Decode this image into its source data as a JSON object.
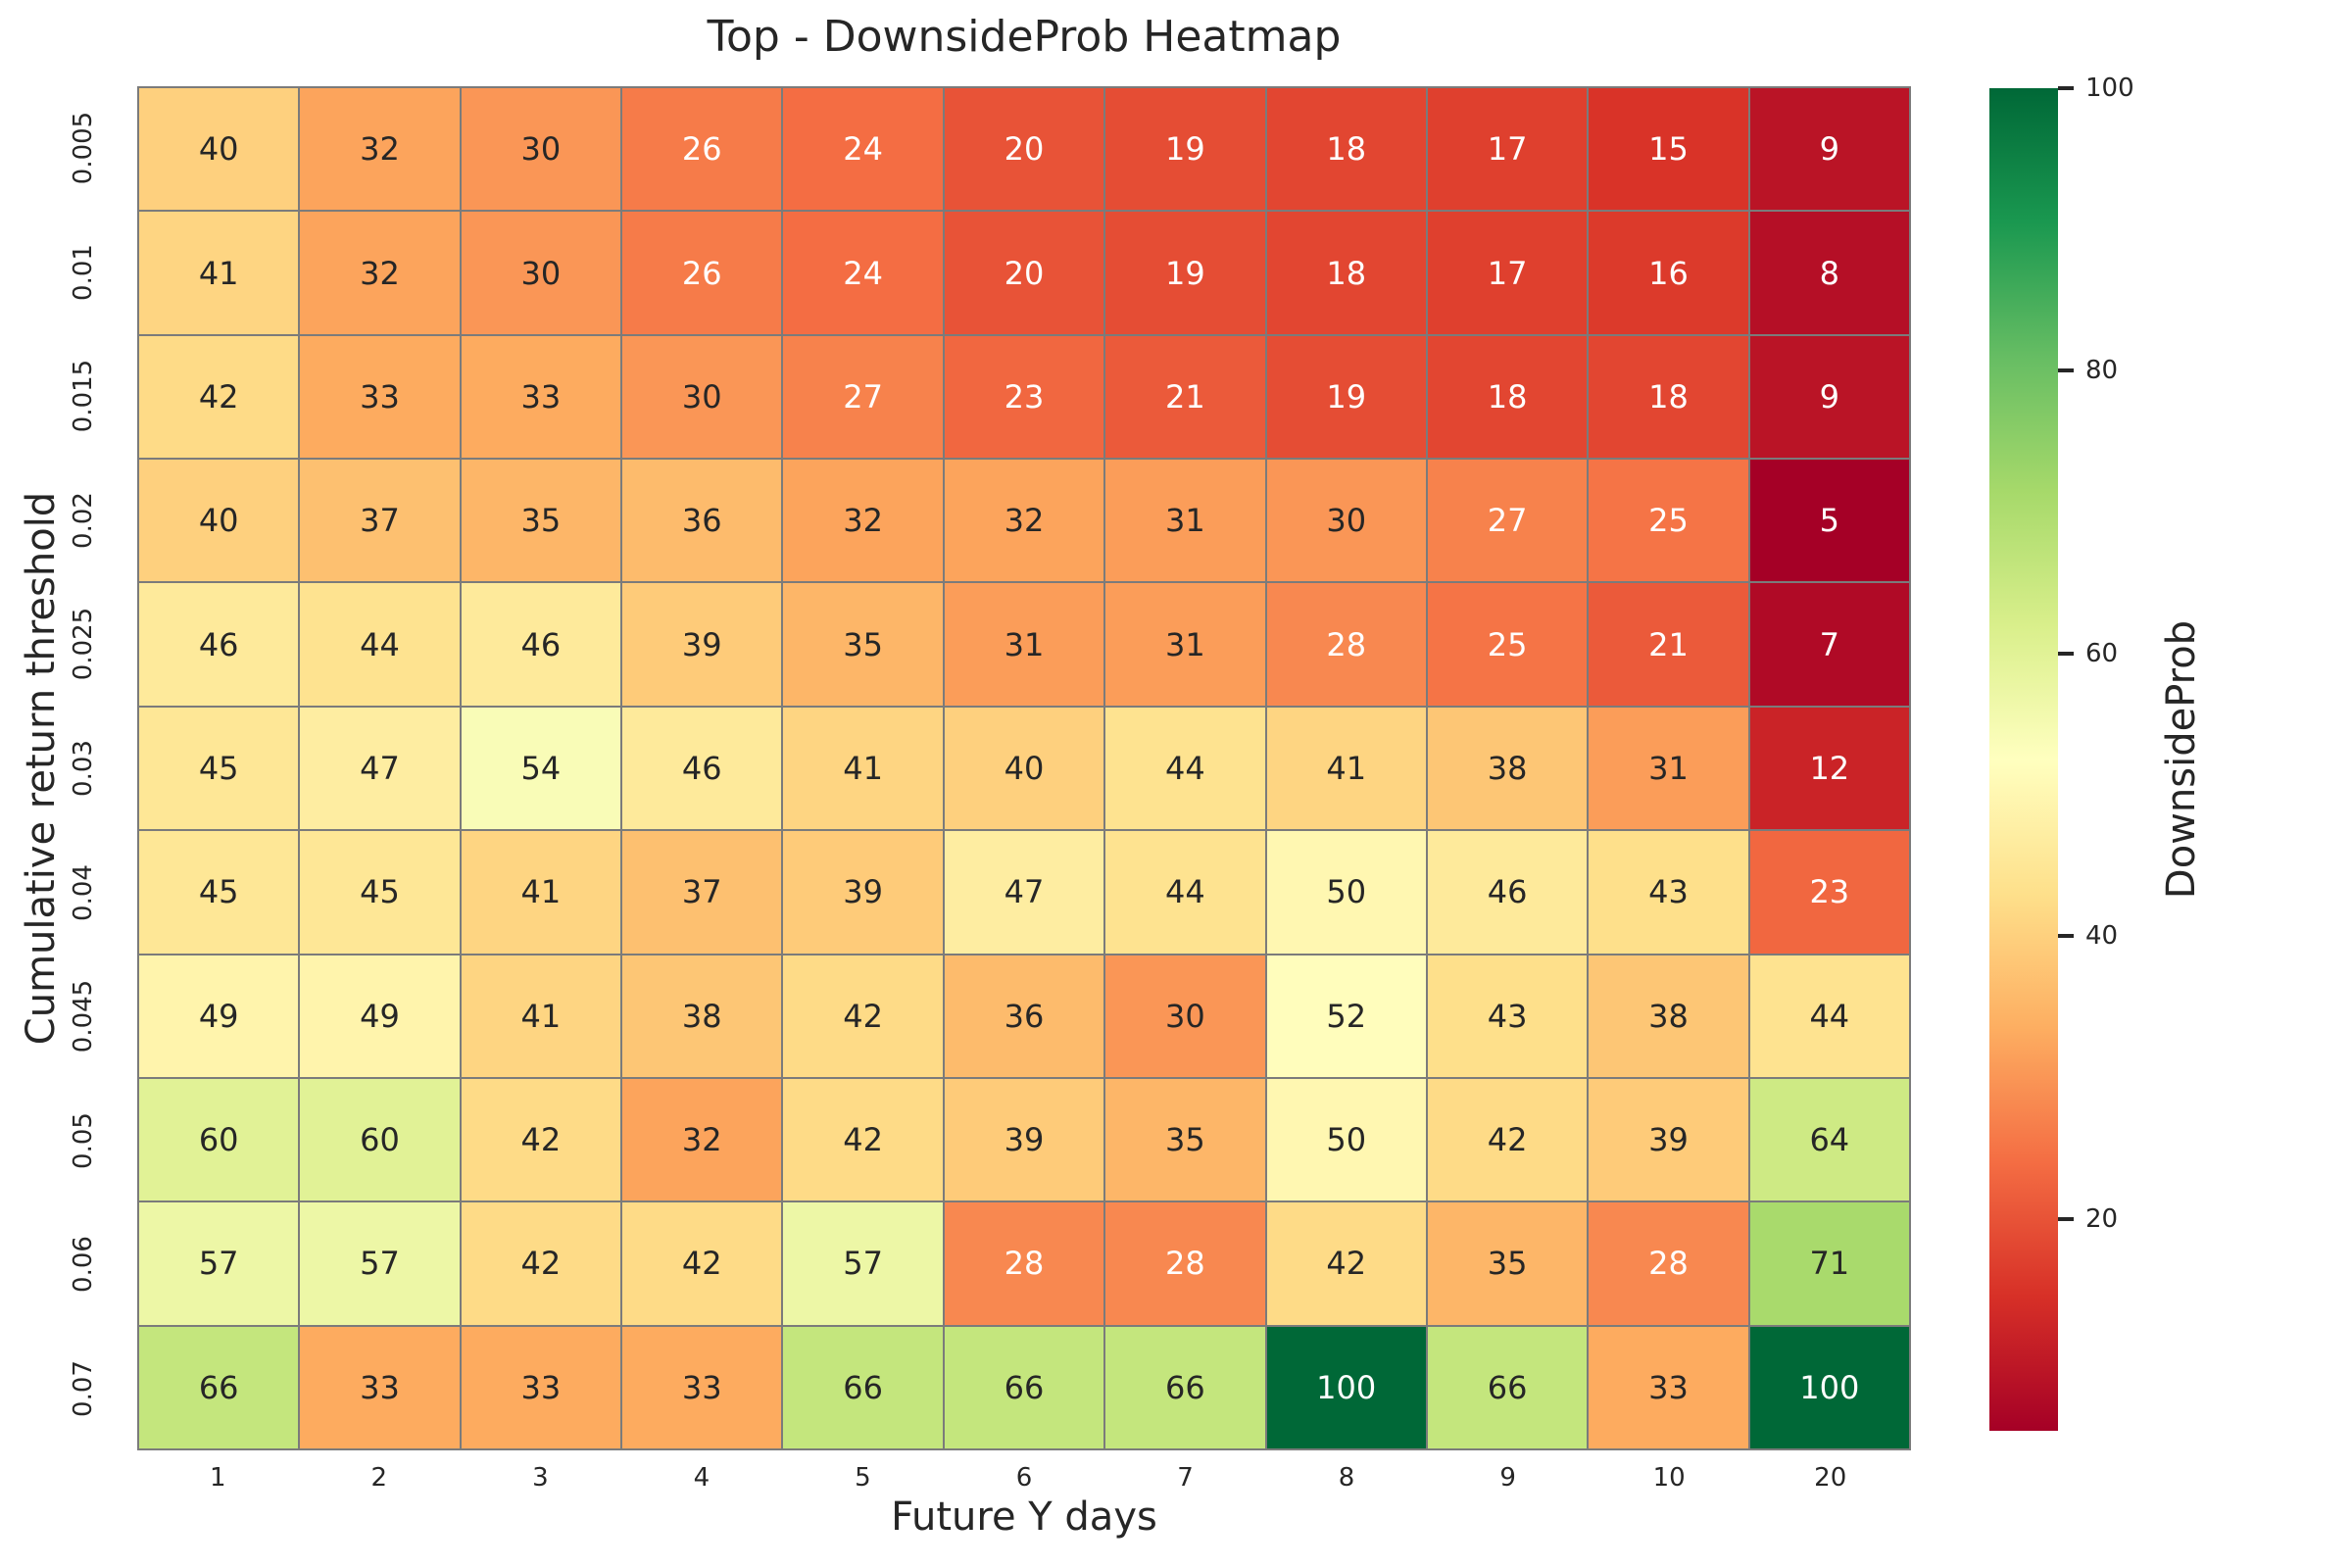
{
  "figure": {
    "background": "#ffffff",
    "text_color": "#262626"
  },
  "chart_data": {
    "type": "heatmap",
    "title": "Top - DownsideProb Heatmap",
    "xlabel": "Future Y days",
    "ylabel": "Cumulative return threshold",
    "x_categories": [
      "1",
      "2",
      "3",
      "4",
      "5",
      "6",
      "7",
      "8",
      "9",
      "10",
      "20"
    ],
    "y_categories": [
      "0.005",
      "0.01",
      "0.015",
      "0.02",
      "0.025",
      "0.03",
      "0.04",
      "0.045",
      "0.05",
      "0.06",
      "0.07"
    ],
    "values": [
      [
        40,
        32,
        30,
        26,
        24,
        20,
        19,
        18,
        17,
        15,
        9
      ],
      [
        41,
        32,
        30,
        26,
        24,
        20,
        19,
        18,
        17,
        16,
        8
      ],
      [
        42,
        33,
        33,
        30,
        27,
        23,
        21,
        19,
        18,
        18,
        9
      ],
      [
        40,
        37,
        35,
        36,
        32,
        32,
        31,
        30,
        27,
        25,
        5
      ],
      [
        46,
        44,
        46,
        39,
        35,
        31,
        31,
        28,
        25,
        21,
        7
      ],
      [
        45,
        47,
        54,
        46,
        41,
        40,
        44,
        41,
        38,
        31,
        12
      ],
      [
        45,
        45,
        41,
        37,
        39,
        47,
        44,
        50,
        46,
        43,
        23
      ],
      [
        49,
        49,
        41,
        38,
        42,
        36,
        30,
        52,
        43,
        38,
        44
      ],
      [
        60,
        60,
        42,
        32,
        42,
        39,
        35,
        50,
        42,
        39,
        64
      ],
      [
        57,
        57,
        42,
        42,
        57,
        28,
        28,
        42,
        35,
        28,
        71
      ],
      [
        66,
        33,
        33,
        33,
        66,
        66,
        66,
        100,
        66,
        33,
        100
      ]
    ],
    "colorbar": {
      "label": "DownsideProb",
      "ticks": [
        20,
        40,
        60,
        80,
        100
      ],
      "vmin": 5,
      "vmax": 100
    },
    "colormap": {
      "name": "RdYlGn",
      "stops": [
        "#a50026",
        "#d73027",
        "#f46d43",
        "#fdae61",
        "#fee08b",
        "#ffffbf",
        "#d9ef8b",
        "#a6d96a",
        "#66bd63",
        "#1a9850",
        "#006837"
      ]
    },
    "grid_line_color": "#7b7b7b",
    "annotation_colors": {
      "dark": "#262626",
      "light": "#ffffff"
    },
    "legend_position": "right",
    "grid": "cell-borders"
  }
}
